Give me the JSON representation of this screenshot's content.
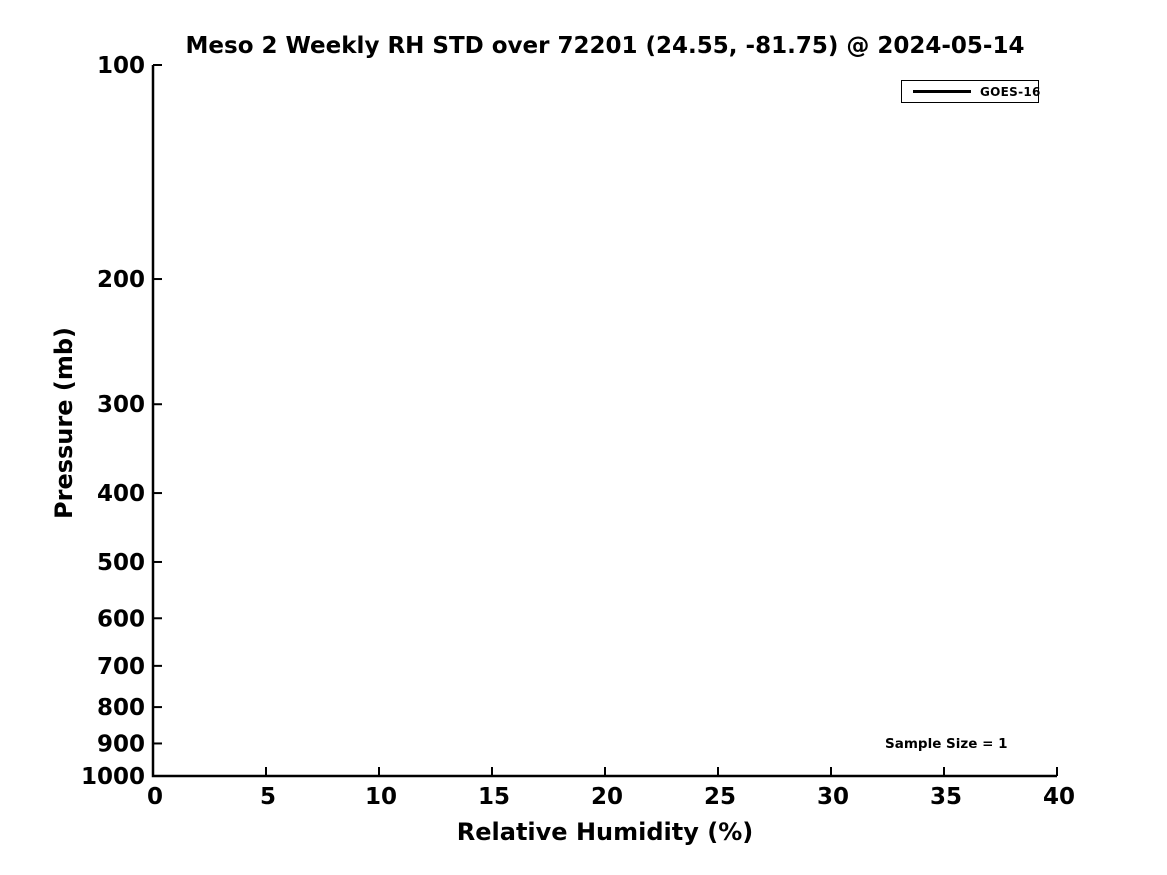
{
  "figure": {
    "background": "#ffffff",
    "text_color": "#000000",
    "axis_color": "#000000"
  },
  "chart_data": {
    "type": "line",
    "title": "Meso 2 Weekly RH STD over 72201 (24.55, -81.75) @ 2024-05-14",
    "xlabel": "Relative Humidity (%)",
    "ylabel": "Pressure (mb)",
    "xlim": [
      0,
      40
    ],
    "xticks": [
      0,
      5,
      10,
      15,
      20,
      25,
      30,
      35,
      40
    ],
    "xscale": "linear",
    "ylim": [
      1000,
      100
    ],
    "yticks": [
      100,
      200,
      300,
      400,
      500,
      600,
      700,
      800,
      900,
      1000
    ],
    "yscale": "log",
    "y_axis_inverted": true,
    "grid": false,
    "spines": [
      "left",
      "bottom"
    ],
    "tick_direction": "in",
    "legend": {
      "position": "upper right",
      "border_color": "#000000",
      "entries": [
        {
          "label": "GOES-16",
          "color": "#000000",
          "line_width": 3
        }
      ]
    },
    "series": [
      {
        "name": "GOES-16",
        "color": "#000000",
        "x": [],
        "y": [],
        "note": "no data line visible inside the plot area (sample size of 1 gives zero STD, coincident with the x=0 axis)"
      }
    ],
    "annotations": [
      {
        "text": "Sample Size = 1",
        "position": "lower right"
      }
    ]
  }
}
